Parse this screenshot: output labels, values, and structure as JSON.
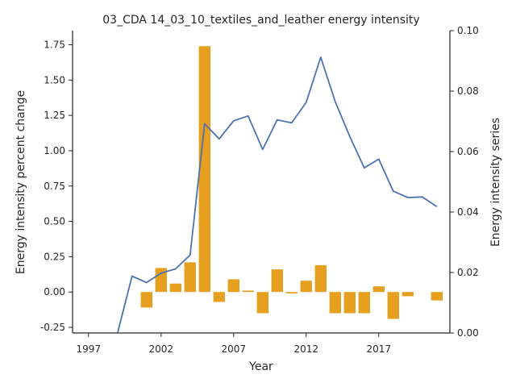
{
  "chart_data": {
    "type": "bar+line",
    "title": "03_CDA 14_03_10_textiles_and_leather energy intensity",
    "xlabel": "Year",
    "ylabel_left": "Energy intensity percent change",
    "ylabel_right": "Energy intensity series",
    "colors": {
      "bar": "#E69F1E",
      "line": "#4C72B0",
      "axis": "#262626"
    },
    "x_ticks": [
      1997,
      2002,
      2007,
      2012,
      2017
    ],
    "xlim": [
      1995.9,
      2021.9
    ],
    "y_left": {
      "lim": [
        -0.29,
        1.85
      ],
      "ticks": [
        "-0.25",
        "0.00",
        "0.25",
        "0.50",
        "0.75",
        "1.00",
        "1.25",
        "1.50",
        "1.75"
      ]
    },
    "y_right": {
      "lim": [
        0.0,
        0.1
      ],
      "ticks": [
        "0.00",
        "0.02",
        "0.04",
        "0.06",
        "0.08",
        "0.10"
      ]
    },
    "bars": {
      "name": "Energy intensity percent change",
      "years": [
        2001,
        2002,
        2003,
        2004,
        2005,
        2006,
        2007,
        2008,
        2009,
        2010,
        2011,
        2012,
        2013,
        2014,
        2015,
        2016,
        2017,
        2018,
        2019,
        2021
      ],
      "values": [
        -0.11,
        0.17,
        0.06,
        0.21,
        1.74,
        -0.07,
        0.09,
        0.01,
        -0.15,
        0.16,
        -0.01,
        0.08,
        0.19,
        -0.15,
        -0.15,
        -0.15,
        0.04,
        -0.19,
        -0.03,
        -0.06
      ]
    },
    "line": {
      "name": "Energy intensity series",
      "years": [
        1999,
        2000,
        2001,
        2002,
        2003,
        2004,
        2005,
        2006,
        2007,
        2008,
        2009,
        2010,
        2011,
        2012,
        2013,
        2014,
        2015,
        2016,
        2017,
        2018,
        2019,
        2020,
        2021
      ],
      "values": [
        0.0,
        0.0188,
        0.0167,
        0.0198,
        0.0212,
        0.0258,
        0.0692,
        0.0642,
        0.0702,
        0.0718,
        0.0607,
        0.0705,
        0.0695,
        0.0763,
        0.0912,
        0.0765,
        0.065,
        0.0546,
        0.0575,
        0.0469,
        0.0448,
        0.045,
        0.0418
      ]
    }
  }
}
